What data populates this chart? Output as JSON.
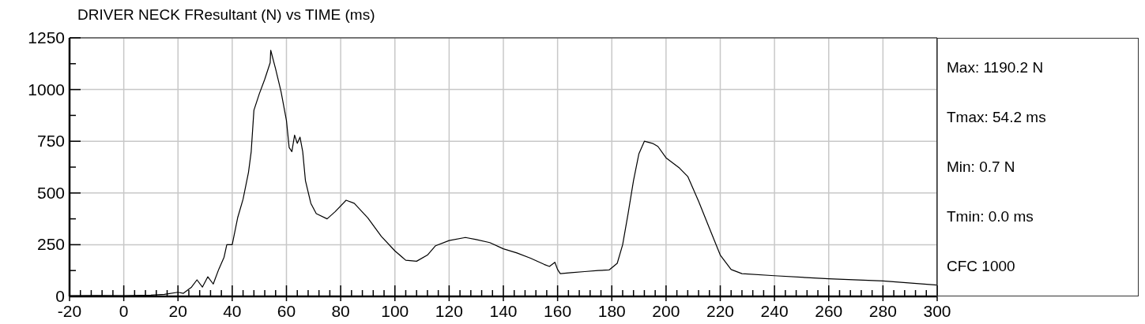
{
  "chart_data": {
    "type": "line",
    "title": "DRIVER NECK FResultant (N) vs TIME (ms)",
    "annotations": [
      "Max: 1190.2 N",
      "Tmax: 54.2 ms",
      "Min: 0.7 N",
      "Tmin: 0.0 ms",
      "CFC 1000"
    ],
    "x": [
      -20,
      -10,
      0,
      10,
      15,
      20,
      22,
      25,
      27,
      29,
      31,
      33,
      35,
      37,
      38,
      40,
      42,
      44,
      46,
      47,
      48,
      50,
      52,
      54,
      54.2,
      56,
      58,
      60,
      61,
      62,
      63,
      64,
      65,
      66,
      67,
      69,
      71,
      75,
      78,
      82,
      85,
      90,
      95,
      100,
      104,
      108,
      112,
      115,
      120,
      126,
      130,
      135,
      140,
      145,
      150,
      155,
      157,
      159,
      160,
      161,
      165,
      170,
      175,
      179,
      182,
      184,
      186,
      188,
      190,
      192,
      195,
      197,
      200,
      205,
      208,
      212,
      216,
      220,
      224,
      228,
      240,
      260,
      280,
      300
    ],
    "series": [
      {
        "color": "#000000",
        "values": [
          3,
          4,
          3,
          6,
          10,
          20,
          15,
          45,
          80,
          45,
          95,
          60,
          130,
          190,
          250,
          250,
          380,
          470,
          600,
          700,
          900,
          980,
          1050,
          1130,
          1190,
          1100,
          990,
          850,
          720,
          700,
          780,
          740,
          770,
          700,
          560,
          450,
          400,
          375,
          410,
          465,
          450,
          380,
          290,
          220,
          175,
          170,
          200,
          245,
          270,
          285,
          275,
          260,
          230,
          210,
          185,
          155,
          145,
          165,
          130,
          110,
          115,
          120,
          125,
          128,
          160,
          250,
          400,
          560,
          690,
          750,
          740,
          725,
          670,
          620,
          580,
          460,
          330,
          200,
          130,
          110,
          100,
          85,
          75,
          55
        ]
      }
    ],
    "xlim": [
      -20,
      300
    ],
    "xticks": [
      -20,
      {
        "value": -16,
        "label": null
      },
      {
        "value": -12,
        "label": null
      },
      {
        "value": -8,
        "label": null
      },
      {
        "value": -4,
        "label": null
      },
      0,
      {
        "value": 4,
        "label": null
      },
      {
        "value": 8,
        "label": null
      },
      {
        "value": 12,
        "label": null
      },
      {
        "value": 16,
        "label": null
      },
      20,
      {
        "value": 24,
        "label": null
      },
      {
        "value": 28,
        "label": null
      },
      {
        "value": 32,
        "label": null
      },
      {
        "value": 36,
        "label": null
      },
      40,
      {
        "value": 44,
        "label": null
      },
      {
        "value": 48,
        "label": null
      },
      {
        "value": 52,
        "label": null
      },
      {
        "value": 56,
        "label": null
      },
      60,
      {
        "value": 64,
        "label": null
      },
      {
        "value": 68,
        "label": null
      },
      {
        "value": 72,
        "label": null
      },
      {
        "value": 76,
        "label": null
      },
      80,
      {
        "value": 84,
        "label": null
      },
      {
        "value": 88,
        "label": null
      },
      {
        "value": 92,
        "label": null
      },
      {
        "value": 96,
        "label": null
      },
      100,
      {
        "value": 104,
        "label": null
      },
      {
        "value": 108,
        "label": null
      },
      {
        "value": 112,
        "label": null
      },
      {
        "value": 116,
        "label": null
      },
      120,
      {
        "value": 124,
        "label": null
      },
      {
        "value": 128,
        "label": null
      },
      {
        "value": 132,
        "label": null
      },
      {
        "value": 136,
        "label": null
      },
      140,
      {
        "value": 144,
        "label": null
      },
      {
        "value": 148,
        "label": null
      },
      {
        "value": 152,
        "label": null
      },
      {
        "value": 156,
        "label": null
      },
      160,
      {
        "value": 164,
        "label": null
      },
      {
        "value": 168,
        "label": null
      },
      {
        "value": 172,
        "label": null
      },
      {
        "value": 176,
        "label": null
      },
      180,
      {
        "value": 184,
        "label": null
      },
      {
        "value": 188,
        "label": null
      },
      {
        "value": 192,
        "label": null
      },
      {
        "value": 196,
        "label": null
      },
      200,
      {
        "value": 204,
        "label": null
      },
      {
        "value": 208,
        "label": null
      },
      {
        "value": 212,
        "label": null
      },
      {
        "value": 216,
        "label": null
      },
      220,
      {
        "value": 224,
        "label": null
      },
      {
        "value": 228,
        "label": null
      },
      {
        "value": 232,
        "label": null
      },
      {
        "value": 236,
        "label": null
      },
      240,
      {
        "value": 244,
        "label": null
      },
      {
        "value": 248,
        "label": null
      },
      {
        "value": 252,
        "label": null
      },
      {
        "value": 256,
        "label": null
      },
      260,
      {
        "value": 264,
        "label": null
      },
      {
        "value": 268,
        "label": null
      },
      {
        "value": 272,
        "label": null
      },
      {
        "value": 276,
        "label": null
      },
      280,
      {
        "value": 284,
        "label": null
      },
      {
        "value": 288,
        "label": null
      },
      {
        "value": 292,
        "label": null
      },
      {
        "value": 296,
        "label": null
      },
      300
    ],
    "ylim": [
      0,
      1250
    ],
    "yticks": [
      0,
      {
        "value": 125,
        "label": null
      },
      250,
      {
        "value": 375,
        "label": null
      },
      500,
      {
        "value": 625,
        "label": null
      },
      750,
      {
        "value": 875,
        "label": null
      },
      1000,
      {
        "value": 1125,
        "label": null
      },
      1250
    ],
    "grid": true,
    "marker": "none",
    "line_style": "solid"
  }
}
